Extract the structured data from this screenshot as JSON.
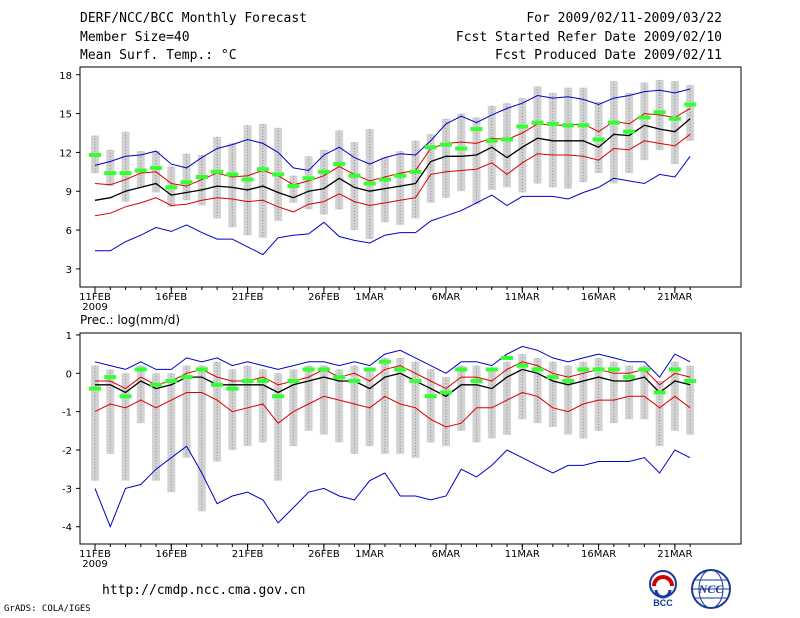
{
  "header": {
    "title": "DERF/NCC/BCC Monthly Forecast",
    "member_size": "Member Size=40",
    "variable": "Mean Surf. Temp.: °C",
    "forecast_range": "For 2009/02/11-2009/03/22",
    "refer_date": "Fcst Started Refer Date 2009/02/10",
    "produced_date": "Fcst Produced Date 2009/02/11"
  },
  "footer": {
    "url": "http://cmdp.ncc.cma.gov.cn",
    "credit": "GrADS: COLA/IGES",
    "logo_left_text": "BCC",
    "logo_right_text": "NCC"
  },
  "colors": {
    "max_min": "#0000cc",
    "spread": "#dd0000",
    "mean": "#000000",
    "box": "#d2d2d2",
    "median": "#33ff33"
  },
  "chart_data": [
    {
      "type": "line",
      "title": "Mean Surf. Temp.: °C",
      "ylim": [
        1.6,
        18.6
      ],
      "yticks": [
        3,
        6,
        9,
        12,
        15,
        18
      ],
      "days": 40,
      "xticks": [
        {
          "day": 0,
          "label": "11FEB",
          "sub": "2009"
        },
        {
          "day": 5,
          "label": "16FEB"
        },
        {
          "day": 10,
          "label": "21FEB"
        },
        {
          "day": 15,
          "label": "26FEB"
        },
        {
          "day": 18,
          "label": "1MAR"
        },
        {
          "day": 23,
          "label": "6MAR"
        },
        {
          "day": 28,
          "label": "11MAR"
        },
        {
          "day": 33,
          "label": "16MAR"
        },
        {
          "day": 38,
          "label": "21MAR"
        }
      ],
      "series": [
        {
          "name": "max",
          "values": [
            11.0,
            11.3,
            11.7,
            11.8,
            12.1,
            11.1,
            10.8,
            11.6,
            12.3,
            12.6,
            13.0,
            12.7,
            12.0,
            10.8,
            10.6,
            11.8,
            12.4,
            11.6,
            11.1,
            11.6,
            11.9,
            11.8,
            12.9,
            14.2,
            14.8,
            14.3,
            14.9,
            15.4,
            15.8,
            16.4,
            16.2,
            16.3,
            16.1,
            15.7,
            16.2,
            16.4,
            16.7,
            16.8,
            16.6,
            16.9
          ]
        },
        {
          "name": "upper",
          "values": [
            9.6,
            9.5,
            9.9,
            10.4,
            10.5,
            9.6,
            9.4,
            9.9,
            10.4,
            10.1,
            10.2,
            10.6,
            10.2,
            9.5,
            9.8,
            10.2,
            10.9,
            10.3,
            9.8,
            10.1,
            10.4,
            10.6,
            12.3,
            12.7,
            12.8,
            12.7,
            13.1,
            13.0,
            13.5,
            14.2,
            14.1,
            14.1,
            14.2,
            13.6,
            14.4,
            14.2,
            15.0,
            14.9,
            14.7,
            15.4
          ]
        },
        {
          "name": "mean",
          "values": [
            8.3,
            8.5,
            9.0,
            9.3,
            9.6,
            8.7,
            8.9,
            9.1,
            9.4,
            9.3,
            9.1,
            9.4,
            8.9,
            8.5,
            9.0,
            9.2,
            10.0,
            9.3,
            9.0,
            9.2,
            9.4,
            9.6,
            11.3,
            11.7,
            11.7,
            11.8,
            12.4,
            11.6,
            12.4,
            13.1,
            12.9,
            12.9,
            12.9,
            12.4,
            13.4,
            13.3,
            14.1,
            13.8,
            13.6,
            14.6
          ]
        },
        {
          "name": "lower",
          "values": [
            7.1,
            7.3,
            7.8,
            8.1,
            8.5,
            7.9,
            8.0,
            8.3,
            8.5,
            8.4,
            8.2,
            8.3,
            7.8,
            7.4,
            8.0,
            8.2,
            8.8,
            8.2,
            7.9,
            8.1,
            8.3,
            8.5,
            10.3,
            10.5,
            10.6,
            10.7,
            11.2,
            10.3,
            11.2,
            11.9,
            11.8,
            11.8,
            11.7,
            11.4,
            12.3,
            12.2,
            12.9,
            12.7,
            12.5,
            13.4
          ]
        },
        {
          "name": "min",
          "values": [
            4.4,
            4.4,
            5.1,
            5.6,
            6.2,
            5.9,
            6.4,
            5.8,
            5.3,
            5.3,
            4.7,
            4.1,
            5.4,
            5.6,
            5.7,
            6.6,
            5.5,
            5.2,
            5.0,
            5.6,
            5.8,
            5.8,
            6.7,
            7.1,
            7.5,
            8.1,
            8.7,
            7.9,
            8.6,
            8.6,
            8.6,
            8.4,
            8.9,
            9.3,
            10.0,
            9.8,
            9.6,
            10.3,
            10.1,
            11.7
          ]
        }
      ],
      "boxes": {
        "high": [
          13.3,
          12.2,
          13.6,
          12.1,
          12.1,
          10.9,
          11.9,
          11.8,
          13.2,
          12.7,
          14.1,
          14.2,
          13.9,
          10.2,
          11.7,
          12.2,
          13.7,
          12.8,
          13.8,
          11.6,
          12.1,
          12.9,
          13.4,
          14.6,
          15.0,
          14.7,
          15.6,
          15.8,
          16.2,
          17.1,
          16.6,
          17.0,
          17.0,
          15.9,
          17.5,
          16.6,
          17.4,
          17.6,
          17.5,
          17.2
        ],
        "low": [
          10.4,
          9.4,
          8.2,
          9.3,
          8.9,
          7.8,
          8.3,
          7.9,
          6.9,
          6.2,
          5.6,
          5.4,
          6.7,
          8.1,
          7.6,
          7.2,
          7.6,
          6.0,
          5.3,
          6.6,
          6.4,
          6.9,
          8.1,
          8.5,
          9.0,
          8.0,
          9.1,
          9.3,
          8.9,
          9.6,
          9.3,
          9.2,
          9.7,
          10.4,
          9.6,
          10.4,
          11.4,
          12.2,
          11.1,
          12.9
        ],
        "median": [
          11.8,
          10.4,
          10.4,
          10.6,
          10.8,
          9.3,
          9.7,
          10.1,
          10.5,
          10.3,
          9.9,
          10.7,
          10.3,
          9.4,
          10.0,
          10.5,
          11.1,
          10.2,
          9.6,
          9.9,
          10.2,
          10.5,
          12.4,
          12.6,
          12.3,
          13.8,
          12.9,
          13.0,
          14.0,
          14.3,
          14.2,
          14.1,
          14.1,
          13.0,
          14.3,
          13.6,
          14.7,
          15.1,
          14.6,
          15.7
        ]
      }
    },
    {
      "type": "line",
      "title": "Prec.: log(mm/d)",
      "ylim": [
        -4.45,
        1.05
      ],
      "yticks": [
        -4,
        -3,
        -2,
        -1,
        0,
        1
      ],
      "days": 40,
      "xticks": [
        {
          "day": 0,
          "label": "11FEB",
          "sub": "2009"
        },
        {
          "day": 5,
          "label": "16FEB"
        },
        {
          "day": 10,
          "label": "21FEB"
        },
        {
          "day": 15,
          "label": "26FEB"
        },
        {
          "day": 18,
          "label": "1MAR"
        },
        {
          "day": 23,
          "label": "6MAR"
        },
        {
          "day": 28,
          "label": "11MAR"
        },
        {
          "day": 33,
          "label": "16MAR"
        },
        {
          "day": 38,
          "label": "21MAR"
        }
      ],
      "series": [
        {
          "name": "max",
          "values": [
            0.3,
            0.2,
            0.1,
            0.3,
            0.1,
            0.1,
            0.4,
            0.3,
            0.4,
            0.2,
            0.3,
            0.2,
            0.1,
            0.2,
            0.3,
            0.3,
            0.2,
            0.3,
            0.2,
            0.5,
            0.6,
            0.4,
            0.2,
            0.0,
            0.3,
            0.3,
            0.2,
            0.5,
            0.7,
            0.6,
            0.4,
            0.3,
            0.4,
            0.5,
            0.4,
            0.3,
            0.3,
            -0.1,
            0.5,
            0.3
          ]
        },
        {
          "name": "upper",
          "values": [
            -0.2,
            -0.2,
            -0.4,
            -0.1,
            -0.3,
            -0.2,
            0.0,
            0.1,
            -0.1,
            -0.2,
            -0.2,
            -0.1,
            -0.3,
            -0.2,
            -0.1,
            0.1,
            -0.1,
            0.0,
            -0.2,
            0.1,
            0.2,
            0.0,
            -0.2,
            -0.4,
            -0.1,
            -0.1,
            -0.2,
            0.1,
            0.3,
            0.2,
            0.0,
            -0.1,
            0.0,
            0.1,
            0.0,
            0.0,
            0.1,
            -0.3,
            0.0,
            -0.1
          ]
        },
        {
          "name": "mean",
          "values": [
            -0.3,
            -0.3,
            -0.5,
            -0.2,
            -0.4,
            -0.3,
            -0.1,
            -0.1,
            -0.3,
            -0.3,
            -0.3,
            -0.3,
            -0.5,
            -0.3,
            -0.2,
            -0.1,
            -0.2,
            -0.2,
            -0.4,
            -0.1,
            0.0,
            -0.2,
            -0.4,
            -0.6,
            -0.3,
            -0.3,
            -0.4,
            -0.1,
            0.1,
            0.0,
            -0.2,
            -0.3,
            -0.2,
            -0.1,
            -0.2,
            -0.2,
            -0.1,
            -0.5,
            -0.2,
            -0.3
          ]
        },
        {
          "name": "lower",
          "values": [
            -1.0,
            -0.8,
            -0.9,
            -0.7,
            -0.9,
            -0.7,
            -0.5,
            -0.5,
            -0.7,
            -1.0,
            -0.9,
            -0.8,
            -1.3,
            -1.0,
            -0.8,
            -0.6,
            -0.7,
            -0.8,
            -0.9,
            -0.6,
            -0.8,
            -0.9,
            -1.2,
            -1.4,
            -1.3,
            -0.9,
            -0.9,
            -0.7,
            -0.5,
            -0.6,
            -0.9,
            -1.0,
            -0.8,
            -0.7,
            -0.7,
            -0.6,
            -0.6,
            -0.9,
            -0.6,
            -0.9
          ]
        },
        {
          "name": "min",
          "values": [
            -3.0,
            -4.0,
            -3.0,
            -2.9,
            -2.5,
            -2.2,
            -1.9,
            -2.6,
            -3.4,
            -3.2,
            -3.1,
            -3.3,
            -3.9,
            -3.5,
            -3.1,
            -3.0,
            -3.2,
            -3.3,
            -2.8,
            -2.6,
            -3.2,
            -3.2,
            -3.3,
            -3.2,
            -2.5,
            -2.7,
            -2.4,
            -2.0,
            -2.2,
            -2.4,
            -2.6,
            -2.4,
            -2.4,
            -2.3,
            -2.3,
            -2.3,
            -2.2,
            -2.6,
            -2.0,
            -2.2
          ]
        }
      ],
      "boxes": {
        "high": [
          0.2,
          0.1,
          0.0,
          0.2,
          0.0,
          0.0,
          0.2,
          0.2,
          0.3,
          0.1,
          0.2,
          0.1,
          0.0,
          0.1,
          0.2,
          0.2,
          0.1,
          0.2,
          0.1,
          0.4,
          0.4,
          0.3,
          0.1,
          -0.1,
          0.2,
          0.2,
          0.1,
          0.3,
          0.5,
          0.4,
          0.3,
          0.2,
          0.3,
          0.4,
          0.3,
          0.2,
          0.2,
          -0.2,
          0.3,
          0.2
        ],
        "low": [
          -2.8,
          -2.1,
          -2.8,
          -1.3,
          -2.8,
          -3.1,
          -2.2,
          -3.6,
          -2.3,
          -2.0,
          -1.9,
          -1.8,
          -2.8,
          -1.9,
          -1.5,
          -1.6,
          -1.8,
          -2.1,
          -1.9,
          -2.1,
          -2.1,
          -2.2,
          -1.8,
          -1.9,
          -1.5,
          -1.8,
          -1.7,
          -1.6,
          -1.2,
          -1.3,
          -1.4,
          -1.6,
          -1.7,
          -1.5,
          -1.3,
          -1.2,
          -1.2,
          -1.9,
          -1.5,
          -1.6
        ],
        "median": [
          -0.4,
          -0.1,
          -0.6,
          0.1,
          -0.3,
          -0.2,
          -0.1,
          0.1,
          -0.3,
          -0.4,
          -0.2,
          -0.2,
          -0.6,
          -0.2,
          0.1,
          0.1,
          -0.1,
          -0.2,
          0.1,
          0.3,
          0.1,
          -0.2,
          -0.6,
          -0.5,
          0.1,
          -0.2,
          0.1,
          0.4,
          0.2,
          0.1,
          -0.1,
          -0.2,
          0.1,
          0.1,
          0.1,
          -0.1,
          0.1,
          -0.5,
          0.1,
          -0.2
        ]
      }
    }
  ]
}
